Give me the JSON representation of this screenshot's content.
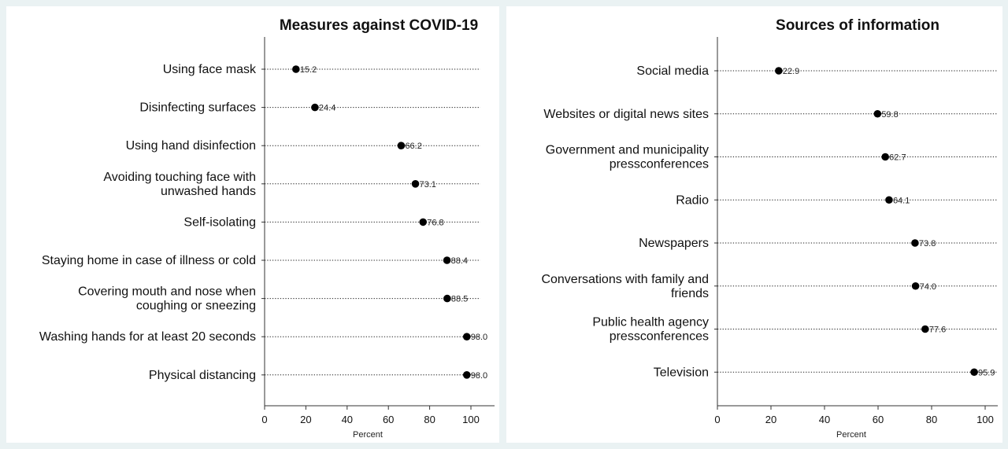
{
  "chart_data": [
    {
      "type": "scatter",
      "title": "Measures against COVID-19",
      "xlabel": "Percent",
      "xlim": [
        0,
        110
      ],
      "xticks": [
        "0",
        "20",
        "40",
        "60",
        "80",
        "100"
      ],
      "categories": [
        [
          "Using face mask"
        ],
        [
          "Disinfecting surfaces"
        ],
        [
          "Using hand disinfection"
        ],
        [
          "Avoiding touching face with",
          "unwashed hands"
        ],
        [
          "Self-isolating"
        ],
        [
          "Staying home in case of illness or cold"
        ],
        [
          "Covering mouth and nose when",
          "coughing or sneezing"
        ],
        [
          "Washing hands for at least 20 seconds"
        ],
        [
          "Physical distancing"
        ]
      ],
      "values": [
        15.2,
        24.4,
        66.2,
        73.1,
        76.8,
        88.4,
        88.5,
        98.0,
        98.0
      ],
      "value_labels": [
        "15.2",
        "24.4",
        "66.2",
        "73.1",
        "76.8",
        "88.4",
        "88.5",
        "98.0",
        "98.0"
      ],
      "marker_color": "#000000",
      "background": "#ffffff"
    },
    {
      "type": "scatter",
      "title": "Sources of information",
      "xlabel": "Percent",
      "xlim": [
        0,
        104
      ],
      "xticks": [
        "0",
        "20",
        "40",
        "60",
        "80",
        "100"
      ],
      "categories": [
        [
          "Social media"
        ],
        [
          "Websites or digital news sites"
        ],
        [
          "Government and municipality",
          "pressconferences"
        ],
        [
          "Radio"
        ],
        [
          "Newspapers"
        ],
        [
          "Conversations with family and",
          "friends"
        ],
        [
          "Public health agency",
          "pressconferences"
        ],
        [
          "Television"
        ]
      ],
      "values": [
        22.9,
        59.8,
        62.7,
        64.1,
        73.8,
        74.0,
        77.6,
        95.9
      ],
      "value_labels": [
        "22.9",
        "59.8",
        "62.7",
        "64.1",
        "73.8",
        "74.0",
        "77.6",
        "95.9"
      ],
      "marker_color": "#000000",
      "background": "#ffffff"
    }
  ]
}
